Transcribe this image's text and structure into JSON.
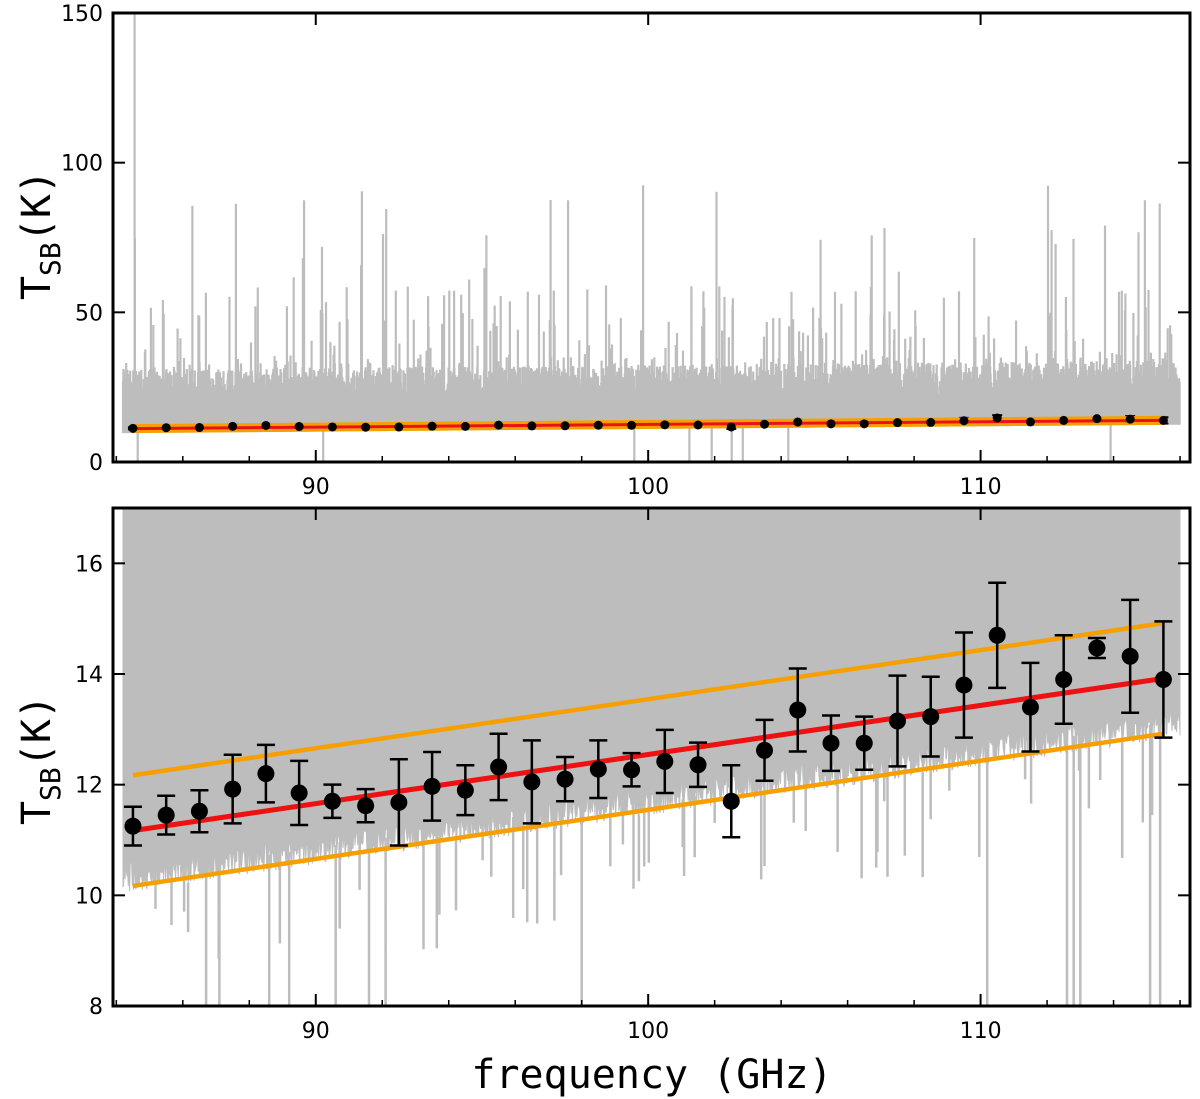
{
  "chart_data": [
    {
      "id": "top",
      "type": "line",
      "title": "",
      "xlabel": "",
      "ylabel": "T",
      "ylabel_sub": "SB",
      "ylabel_unit": "(K)",
      "xlim": [
        83.9,
        116.3
      ],
      "ylim": [
        0,
        150
      ],
      "xticks": [
        90,
        100,
        110
      ],
      "yticks": [
        0,
        50,
        100,
        150
      ],
      "grid": false,
      "legend": "none",
      "series": [
        {
          "name": "spectrum",
          "kind": "spectrum",
          "color": "#bdbdbd",
          "baseline": [
            11.2,
            13.9
          ],
          "peak_max": 150
        },
        {
          "name": "binned mean",
          "kind": "points_with_errorbars",
          "color": "#000000"
        },
        {
          "name": "linear fit",
          "kind": "line",
          "color": "#ee1111"
        },
        {
          "name": "fit +1 K",
          "kind": "line",
          "color": "#f5a000"
        },
        {
          "name": "fit -1 K",
          "kind": "line",
          "color": "#f5a000"
        }
      ]
    },
    {
      "id": "bottom",
      "type": "scatter",
      "title": "",
      "xlabel": "frequency (GHz)",
      "ylabel": "T",
      "ylabel_sub": "SB",
      "ylabel_unit": "(K)",
      "xlim": [
        83.9,
        116.3
      ],
      "ylim": [
        8,
        17
      ],
      "xticks": [
        90,
        100,
        110
      ],
      "yticks": [
        8,
        10,
        12,
        14,
        16
      ],
      "grid": false,
      "legend": "none",
      "points": {
        "name": "binned mean",
        "color": "#000000",
        "x": [
          84.5,
          85.5,
          86.5,
          87.5,
          88.5,
          89.5,
          90.5,
          91.5,
          92.5,
          93.5,
          94.5,
          95.5,
          96.5,
          97.5,
          98.5,
          99.5,
          100.5,
          101.5,
          102.5,
          103.5,
          104.5,
          105.5,
          106.5,
          107.5,
          108.5,
          109.5,
          110.5,
          111.5,
          112.5,
          113.5,
          114.5,
          115.5
        ],
        "y": [
          11.25,
          11.45,
          11.52,
          11.92,
          12.2,
          11.85,
          11.7,
          11.62,
          11.68,
          11.97,
          11.9,
          12.32,
          12.05,
          12.1,
          12.28,
          12.27,
          12.42,
          12.36,
          11.7,
          12.62,
          13.35,
          12.75,
          12.75,
          13.15,
          13.23,
          13.8,
          14.7,
          13.4,
          13.9,
          14.47,
          14.32,
          13.9
        ],
        "err": [
          0.35,
          0.35,
          0.38,
          0.62,
          0.52,
          0.58,
          0.3,
          0.3,
          0.78,
          0.62,
          0.45,
          0.6,
          0.75,
          0.4,
          0.52,
          0.3,
          0.57,
          0.4,
          0.65,
          0.55,
          0.75,
          0.5,
          0.48,
          0.82,
          0.72,
          0.95,
          0.95,
          0.8,
          0.8,
          0.18,
          1.02,
          1.05
        ]
      },
      "fit": {
        "name": "linear fit",
        "color": "#ee1111",
        "x": [
          84.5,
          115.5
        ],
        "y": [
          11.17,
          13.92
        ]
      },
      "envelope": [
        {
          "name": "fit +1 K",
          "color": "#f5a000",
          "x": [
            84.5,
            115.5
          ],
          "y": [
            12.17,
            14.92
          ]
        },
        {
          "name": "fit -1 K",
          "color": "#f5a000",
          "x": [
            84.5,
            115.5
          ],
          "y": [
            10.17,
            12.92
          ]
        }
      ],
      "spectrum": {
        "name": "spectrum",
        "color": "#bdbdbd"
      }
    }
  ]
}
